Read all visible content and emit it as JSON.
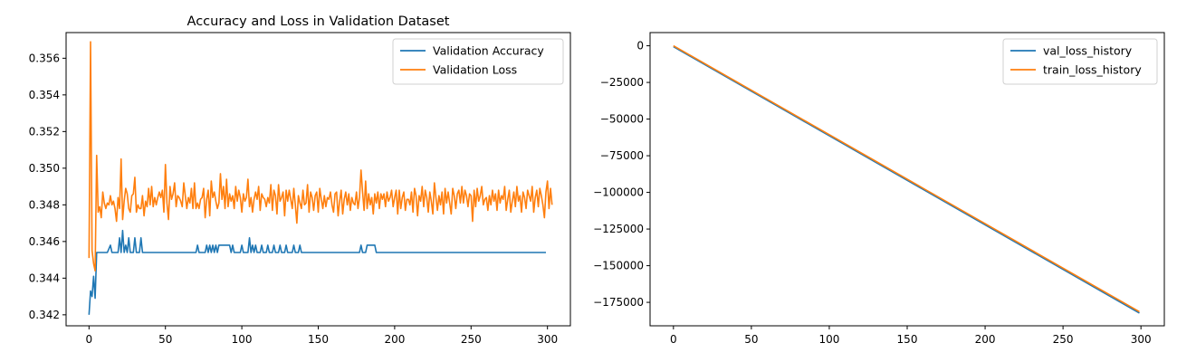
{
  "chart_data": [
    {
      "type": "line",
      "title": "Accuracy and Loss in Validation Dataset",
      "xlabel": "",
      "ylabel": "",
      "xlim": [
        -15,
        315
      ],
      "ylim": [
        0.3414,
        0.3574
      ],
      "xticks": [
        0,
        50,
        100,
        150,
        200,
        250,
        300
      ],
      "yticks": [
        0.342,
        0.344,
        0.346,
        0.348,
        0.35,
        0.352,
        0.354,
        0.356
      ],
      "ytick_labels": [
        "0.342",
        "0.344",
        "0.346",
        "0.348",
        "0.350",
        "0.352",
        "0.354",
        "0.356"
      ],
      "legend_position": "upper-right",
      "grid": false,
      "series": [
        {
          "name": "Validation Accuracy",
          "color": "#1f77b4",
          "points": [
            [
              0,
              0.342
            ],
            [
              1,
              0.3433
            ],
            [
              2,
              0.343
            ],
            [
              3,
              0.3441
            ],
            [
              4,
              0.3429
            ],
            [
              5,
              0.3454
            ],
            [
              12,
              0.3454
            ],
            [
              14,
              0.3458
            ],
            [
              15,
              0.3454
            ],
            [
              19,
              0.3454
            ],
            [
              20,
              0.3462
            ],
            [
              21,
              0.3454
            ],
            [
              22,
              0.3466
            ],
            [
              23,
              0.3454
            ],
            [
              24,
              0.3458
            ],
            [
              25,
              0.3454
            ],
            [
              26,
              0.3462
            ],
            [
              27,
              0.3454
            ],
            [
              29,
              0.3454
            ],
            [
              30,
              0.3462
            ],
            [
              31,
              0.3454
            ],
            [
              33,
              0.3454
            ],
            [
              34,
              0.3462
            ],
            [
              35,
              0.3454
            ],
            [
              70,
              0.3454
            ],
            [
              71,
              0.3458
            ],
            [
              72,
              0.3454
            ],
            [
              76,
              0.3454
            ],
            [
              77,
              0.3458
            ],
            [
              78,
              0.3454
            ],
            [
              79,
              0.3458
            ],
            [
              80,
              0.3454
            ],
            [
              81,
              0.3458
            ],
            [
              82,
              0.3454
            ],
            [
              83,
              0.3458
            ],
            [
              84,
              0.3454
            ],
            [
              85,
              0.3458
            ],
            [
              92,
              0.3458
            ],
            [
              93,
              0.3454
            ],
            [
              94,
              0.3458
            ],
            [
              95,
              0.3454
            ],
            [
              99,
              0.3454
            ],
            [
              100,
              0.3458
            ],
            [
              101,
              0.3454
            ],
            [
              104,
              0.3454
            ],
            [
              105,
              0.3462
            ],
            [
              106,
              0.3454
            ],
            [
              107,
              0.3458
            ],
            [
              108,
              0.3454
            ],
            [
              109,
              0.3458
            ],
            [
              110,
              0.3454
            ],
            [
              112,
              0.3454
            ],
            [
              113,
              0.3458
            ],
            [
              114,
              0.3454
            ],
            [
              116,
              0.3454
            ],
            [
              117,
              0.3458
            ],
            [
              118,
              0.3454
            ],
            [
              120,
              0.3454
            ],
            [
              121,
              0.3458
            ],
            [
              122,
              0.3454
            ],
            [
              124,
              0.3454
            ],
            [
              125,
              0.3458
            ],
            [
              126,
              0.3454
            ],
            [
              128,
              0.3454
            ],
            [
              129,
              0.3458
            ],
            [
              130,
              0.3454
            ],
            [
              133,
              0.3454
            ],
            [
              134,
              0.3458
            ],
            [
              135,
              0.3454
            ],
            [
              137,
              0.3454
            ],
            [
              138,
              0.3458
            ],
            [
              139,
              0.3454
            ],
            [
              177,
              0.3454
            ],
            [
              178,
              0.3458
            ],
            [
              179,
              0.3454
            ],
            [
              181,
              0.3454
            ],
            [
              182,
              0.3458
            ],
            [
              187,
              0.3458
            ],
            [
              188,
              0.3454
            ],
            [
              299,
              0.3454
            ]
          ]
        },
        {
          "name": "Validation Loss",
          "color": "#ff7f0e",
          "values": [
            0.3451,
            0.3569,
            0.3455,
            0.3448,
            0.3444,
            0.3507,
            0.3476,
            0.3479,
            0.3473,
            0.3487,
            0.3481,
            0.3478,
            0.3481,
            0.348,
            0.3485,
            0.348,
            0.3482,
            0.3478,
            0.3471,
            0.3484,
            0.3478,
            0.3505,
            0.3472,
            0.3482,
            0.3489,
            0.3486,
            0.3478,
            0.3476,
            0.3485,
            0.3486,
            0.3495,
            0.3476,
            0.348,
            0.3478,
            0.3478,
            0.3485,
            0.3474,
            0.3482,
            0.3479,
            0.3489,
            0.348,
            0.349,
            0.3479,
            0.3484,
            0.348,
            0.3484,
            0.3487,
            0.3484,
            0.3488,
            0.3476,
            0.3502,
            0.3481,
            0.3472,
            0.349,
            0.3483,
            0.3486,
            0.3492,
            0.3479,
            0.3485,
            0.3484,
            0.3482,
            0.3479,
            0.3492,
            0.3485,
            0.3478,
            0.3484,
            0.3481,
            0.3489,
            0.3478,
            0.3492,
            0.3478,
            0.3481,
            0.3478,
            0.3483,
            0.3484,
            0.3489,
            0.3473,
            0.3483,
            0.3488,
            0.3474,
            0.3493,
            0.3484,
            0.3487,
            0.3482,
            0.3478,
            0.3481,
            0.3497,
            0.3483,
            0.349,
            0.3478,
            0.3494,
            0.3479,
            0.3486,
            0.3482,
            0.3485,
            0.3478,
            0.349,
            0.3482,
            0.3488,
            0.3484,
            0.3476,
            0.3486,
            0.3482,
            0.3484,
            0.3494,
            0.3479,
            0.3484,
            0.3476,
            0.3483,
            0.3487,
            0.3483,
            0.349,
            0.3477,
            0.3486,
            0.3484,
            0.3483,
            0.3479,
            0.3484,
            0.3481,
            0.3491,
            0.3477,
            0.3488,
            0.3485,
            0.3475,
            0.3491,
            0.3482,
            0.3484,
            0.3487,
            0.3474,
            0.3488,
            0.3482,
            0.3488,
            0.3483,
            0.3478,
            0.3489,
            0.348,
            0.347,
            0.3485,
            0.3481,
            0.3478,
            0.3488,
            0.348,
            0.3481,
            0.3491,
            0.3476,
            0.3487,
            0.3484,
            0.3477,
            0.3485,
            0.3487,
            0.3476,
            0.3489,
            0.3483,
            0.3478,
            0.3485,
            0.3479,
            0.3484,
            0.3483,
            0.3487,
            0.348,
            0.3476,
            0.3486,
            0.3487,
            0.3474,
            0.3482,
            0.3488,
            0.3475,
            0.3483,
            0.3487,
            0.348,
            0.3486,
            0.3477,
            0.3484,
            0.3481,
            0.348,
            0.3487,
            0.3478,
            0.3484,
            0.3499,
            0.3487,
            0.3477,
            0.3493,
            0.3478,
            0.3486,
            0.348,
            0.3484,
            0.3475,
            0.3486,
            0.3481,
            0.3487,
            0.3478,
            0.3486,
            0.3483,
            0.3486,
            0.3479,
            0.3487,
            0.3482,
            0.3484,
            0.3488,
            0.3479,
            0.3484,
            0.3488,
            0.3475,
            0.3488,
            0.3478,
            0.3484,
            0.3487,
            0.3477,
            0.3483,
            0.3483,
            0.348,
            0.3487,
            0.3476,
            0.3489,
            0.3485,
            0.3474,
            0.3485,
            0.3482,
            0.349,
            0.3479,
            0.3488,
            0.3484,
            0.3476,
            0.3487,
            0.3482,
            0.3475,
            0.3492,
            0.3484,
            0.3477,
            0.3485,
            0.348,
            0.3487,
            0.3475,
            0.3489,
            0.3481,
            0.3487,
            0.3481,
            0.3475,
            0.3489,
            0.3485,
            0.3478,
            0.3486,
            0.3488,
            0.3481,
            0.349,
            0.3481,
            0.3488,
            0.3485,
            0.3479,
            0.3486,
            0.3485,
            0.3471,
            0.3488,
            0.3479,
            0.3489,
            0.3482,
            0.3485,
            0.349,
            0.348,
            0.3483,
            0.3484,
            0.3477,
            0.3485,
            0.348,
            0.3488,
            0.3482,
            0.3486,
            0.3477,
            0.3488,
            0.3481,
            0.3485,
            0.3483,
            0.349,
            0.3477,
            0.3483,
            0.3488,
            0.3476,
            0.3482,
            0.3487,
            0.3479,
            0.349,
            0.3482,
            0.3485,
            0.3476,
            0.3487,
            0.3484,
            0.3478,
            0.3488,
            0.3485,
            0.3482,
            0.349,
            0.3476,
            0.3484,
            0.3488,
            0.3479,
            0.3489,
            0.3485,
            0.348,
            0.3473,
            0.3487,
            0.3493,
            0.3478,
            0.3489,
            0.348
          ]
        }
      ]
    },
    {
      "type": "line",
      "title": "",
      "xlabel": "",
      "ylabel": "",
      "xlim": [
        -15,
        315
      ],
      "ylim": [
        -191000,
        9000
      ],
      "xticks": [
        0,
        50,
        100,
        150,
        200,
        250,
        300
      ],
      "yticks": [
        0,
        -25000,
        -50000,
        -75000,
        -100000,
        -125000,
        -150000,
        -175000
      ],
      "ytick_labels": [
        "0",
        "−25000",
        "−50000",
        "−75000",
        "−100000",
        "−125000",
        "−150000",
        "−175000"
      ],
      "legend_position": "upper-right",
      "grid": false,
      "series": [
        {
          "name": "val_loss_history",
          "color": "#1f77b4",
          "points": [
            [
              0,
              -600
            ],
            [
              299,
              -182300
            ]
          ]
        },
        {
          "name": "train_loss_history",
          "color": "#ff7f0e",
          "points": [
            [
              0,
              0
            ],
            [
              299,
              -181400
            ]
          ]
        }
      ]
    }
  ]
}
